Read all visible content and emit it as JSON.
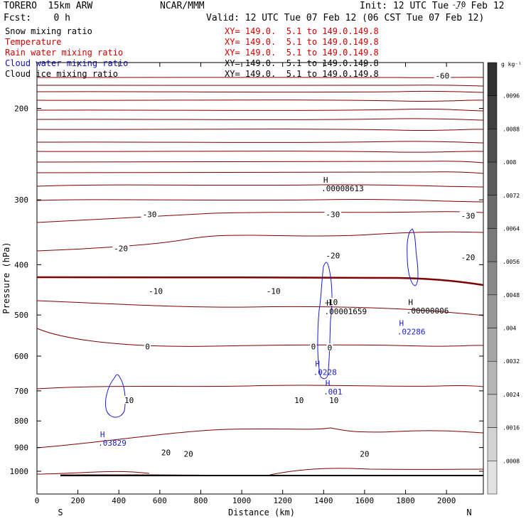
{
  "header": {
    "model": "TORERO  15km ARW",
    "center": "NCAR/MMM",
    "init": "Init: 12 UTC Tue 07 Feb 12",
    "fcst": "Fcst:    0 h",
    "valid": "Valid: 12 UTC Tue 07 Feb 12 (06 CST Tue 07 Feb 12)"
  },
  "fields": [
    {
      "name": "Snow mixing ratio",
      "xy": "XY= 149.0.  5.1 to 149.0.149.8",
      "color": "#000000"
    },
    {
      "name": "Temperature",
      "xy": "XY= 149.0.  5.1 to 149.0.149.8",
      "color": "#d00000"
    },
    {
      "name": "Rain water mixing ratio",
      "xy": "XY= 149.0.  5.1 to 149.0.149.8",
      "color": "#d00000"
    },
    {
      "name": "Cloud water mixing ratio",
      "xy": "XY= 149.0.  5.1 to 149.0.149.8",
      "color": "#1010c0"
    },
    {
      "name": "Cloud ice mixing ratio",
      "xy": "XY= 149.0.  5.1 to 149.0.149.8",
      "color": "#000000"
    }
  ],
  "colors": {
    "temperature": "#800000",
    "cloud_water": "#1a1acc",
    "text": "#000000"
  },
  "chart_data": {
    "type": "contour",
    "xlabel": "Distance (km)",
    "ylabel": "Pressure (hPa)",
    "xlim": [
      0,
      2180
    ],
    "ylim": [
      1050,
      100
    ],
    "y_scale": "log",
    "xticks": [
      0,
      200,
      400,
      600,
      800,
      1000,
      1200,
      1400,
      1600,
      1800,
      2000
    ],
    "yticks": [
      200,
      300,
      400,
      500,
      600,
      700,
      800,
      900,
      1000
    ],
    "x_end_labels": [
      "S",
      "N"
    ],
    "colorbar": {
      "unit": "g kg⁻¹",
      "ticks": [
        ".0096",
        ".0088",
        ".008",
        ".0072",
        ".0064",
        ".0056",
        ".0048",
        ".004",
        ".0032",
        ".0024",
        ".0016",
        ".0008"
      ]
    },
    "temperature_labels": [
      {
        "text": "-70",
        "x": 2060,
        "p": 126
      },
      {
        "text": "-60",
        "x": 1980,
        "p": 173
      },
      {
        "text": "-30",
        "x": 550,
        "p": 320
      },
      {
        "text": "-30",
        "x": 1445,
        "p": 320
      },
      {
        "text": "-30",
        "x": 2105,
        "p": 322
      },
      {
        "text": "-20",
        "x": 410,
        "p": 372
      },
      {
        "text": "-20",
        "x": 1445,
        "p": 384
      },
      {
        "text": "-20",
        "x": 2105,
        "p": 387
      },
      {
        "text": "-10",
        "x": 580,
        "p": 450
      },
      {
        "text": "-10",
        "x": 1155,
        "p": 450
      },
      {
        "text": "-10",
        "x": 1435,
        "p": 472
      },
      {
        "text": "0",
        "x": 540,
        "p": 575
      },
      {
        "text": "0",
        "x": 1350,
        "p": 575
      },
      {
        "text": "0",
        "x": 1430,
        "p": 578
      },
      {
        "text": "10",
        "x": 450,
        "p": 730
      },
      {
        "text": "10",
        "x": 1280,
        "p": 730
      },
      {
        "text": "10",
        "x": 1450,
        "p": 730
      },
      {
        "text": "20",
        "x": 630,
        "p": 920
      },
      {
        "text": "20",
        "x": 740,
        "p": 925
      },
      {
        "text": "20",
        "x": 1600,
        "p": 926
      }
    ],
    "maxima": [
      {
        "symbol": "H",
        "value": ".00008613",
        "x": 1410,
        "p": 278,
        "color": "#000000"
      },
      {
        "symbol": "H",
        "value": ".00001659",
        "x": 1425,
        "p": 480,
        "color": "#000000"
      },
      {
        "symbol": "H",
        "value": ".00000006",
        "x": 1825,
        "p": 478,
        "color": "#000000"
      },
      {
        "symbol": "H",
        "value": ".02286",
        "x": 1780,
        "p": 525,
        "color": "#1a1acc"
      },
      {
        "symbol": "H",
        "value": ".0228",
        "x": 1370,
        "p": 628,
        "color": "#1a1acc"
      },
      {
        "symbol": "H",
        "value": ".001",
        "x": 1420,
        "p": 685,
        "color": "#1a1acc"
      },
      {
        "symbol": "H",
        "value": ".03829",
        "x": 320,
        "p": 860,
        "color": "#1a1acc"
      }
    ]
  }
}
